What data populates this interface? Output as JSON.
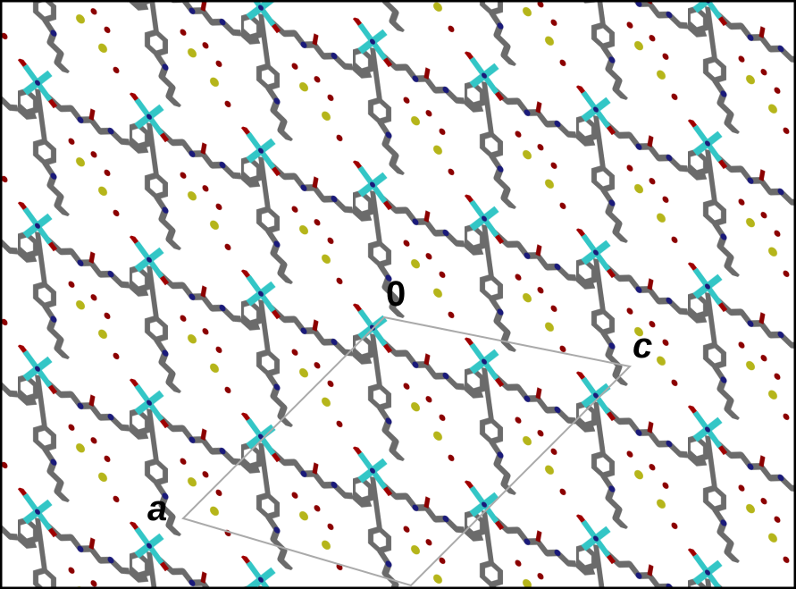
{
  "labels": {
    "origin": "0",
    "a": "a",
    "c": "c"
  }
}
